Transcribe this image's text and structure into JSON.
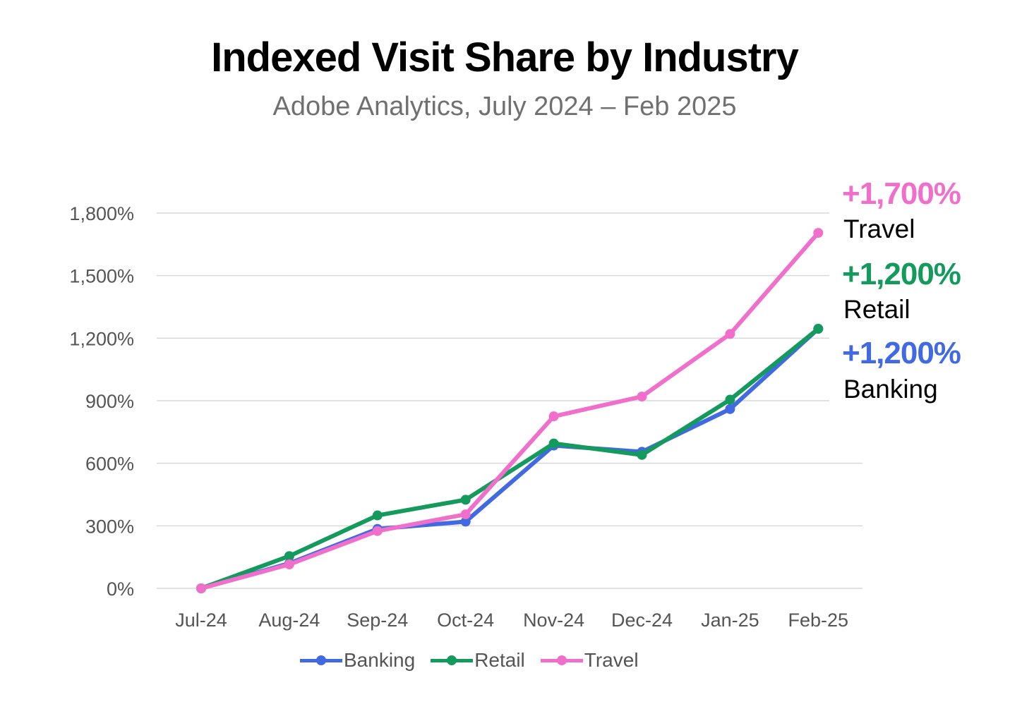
{
  "chart_data": {
    "type": "line",
    "title": "Indexed Visit Share by Industry",
    "subtitle": "Adobe Analytics, July 2024 – Feb 2025",
    "categories": [
      "Jul-24",
      "Aug-24",
      "Sep-24",
      "Oct-24",
      "Nov-24",
      "Dec-24",
      "Jan-25",
      "Feb-25"
    ],
    "ylim": [
      0,
      1800
    ],
    "yticks": [
      0,
      300,
      600,
      900,
      1200,
      1500,
      1800
    ],
    "ytick_labels": [
      "0%",
      "300%",
      "600%",
      "900%",
      "1,200%",
      "1,500%",
      "1,800%"
    ],
    "grid": true,
    "legend_position": "bottom",
    "series": [
      {
        "name": "Banking",
        "color": "#4169E1",
        "values": [
          0,
          120,
          285,
          320,
          685,
          655,
          860,
          1245
        ]
      },
      {
        "name": "Retail",
        "color": "#139A5C",
        "values": [
          0,
          155,
          350,
          425,
          695,
          640,
          905,
          1245
        ]
      },
      {
        "name": "Travel",
        "color": "#F06FCB",
        "values": [
          0,
          115,
          275,
          355,
          825,
          920,
          1220,
          1705
        ]
      }
    ],
    "annotations": [
      {
        "value": "+1,700%",
        "label": "Travel",
        "color": "#F06FCB"
      },
      {
        "value": "+1,200%",
        "label": "Retail",
        "color": "#139A5C"
      },
      {
        "value": "+1,200%",
        "label": "Banking",
        "color": "#4169E1"
      }
    ]
  }
}
